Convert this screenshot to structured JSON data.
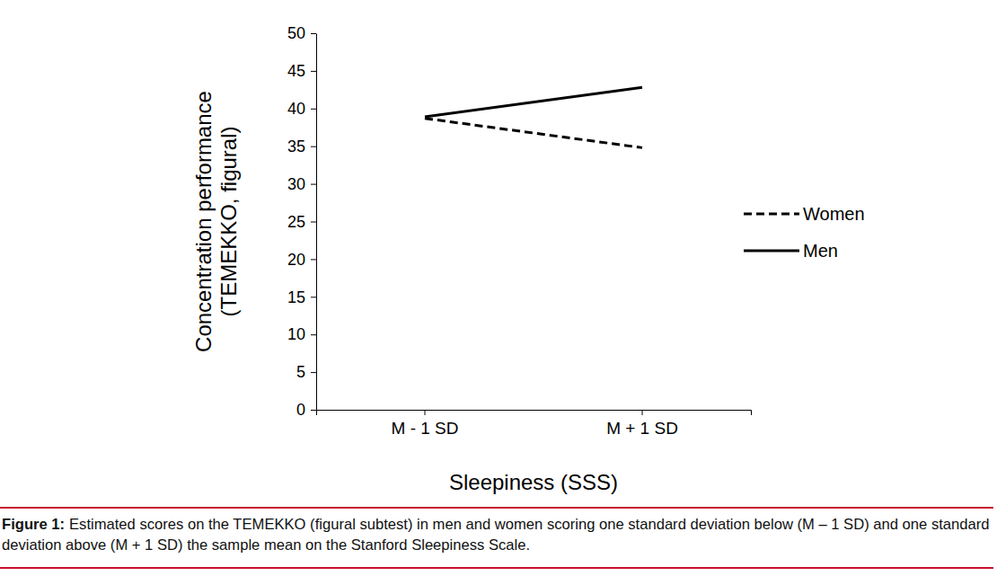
{
  "chart_data": {
    "type": "line",
    "ylabel": [
      "Concentration performance",
      "(TEMEKKO, figural)"
    ],
    "xlabel": "Sleepiness (SSS)",
    "categories": [
      "M - 1 SD",
      "M + 1 SD"
    ],
    "series": [
      {
        "name": "Women",
        "color": "#000000",
        "line_style": "dashed",
        "values": [
          38.7,
          34.8
        ]
      },
      {
        "name": "Men",
        "color": "#000000",
        "line_style": "solid",
        "values": [
          38.9,
          42.8
        ]
      }
    ],
    "ylim": [
      0,
      50
    ],
    "yticks": [
      0,
      5,
      10,
      15,
      20,
      25,
      30,
      35,
      40,
      45,
      50
    ],
    "grid": false,
    "legend": "right",
    "caption_label": "Figure 1:",
    "caption": "Estimated scores on the TEMEKKO (figural subtest) in men and women scoring one standard deviation below (M – 1 SD) and one standard deviation above (M + 1 SD) the sample mean on the Stanford Sleepiness Scale."
  }
}
